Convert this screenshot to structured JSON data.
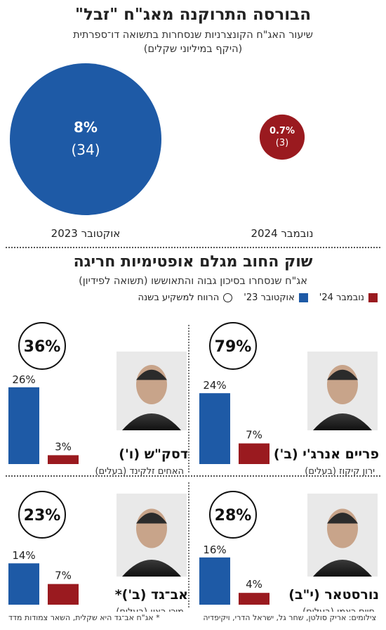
{
  "colors": {
    "blue": "#1e5aa6",
    "red": "#9a1a1f",
    "ink": "#1a1a1a"
  },
  "top": {
    "title": "הבורסה התרוקנה מאג\"ח \"זבל\"",
    "subtitle": "שיעור האג\"ח הקונצרניות שנסחרות בתשואה דו־ספרתית",
    "subtitle2": "(היקף במיליוני שקלים)"
  },
  "chart_data": [
    {
      "type": "bubble",
      "categories": [
        "אוקטובר 2023",
        "נובמבר 2024"
      ],
      "values": [
        8,
        0.7
      ],
      "value_labels": [
        "8%",
        "0.7%"
      ],
      "volume_labels": [
        "(34)",
        "(3)"
      ],
      "volumes": [
        34,
        3
      ],
      "unit": "%"
    },
    {
      "type": "bar",
      "legend": [
        "נובמבר 24'",
        "אוקטובר 23'",
        "הרווח למשקיע בשנה"
      ],
      "legend_placement": "top",
      "panels": [
        {
          "company": "פריים אנרג'י (ב')",
          "person": "ירון קיקוז (בעלים)",
          "oct23": 24,
          "nov24": 7,
          "oct23_label": "24%",
          "nov24_label": "7%",
          "gain_label": "79%"
        },
        {
          "company": "דסק\"ש (ו')",
          "person": "האחים זלקינד (בעלים)",
          "oct23": 26,
          "nov24": 3,
          "oct23_label": "26%",
          "nov24_label": "3%",
          "gain_label": "36%"
        },
        {
          "company": "נורסטאר (י\"ב)",
          "person": "חיים כצמן (בעלים)",
          "oct23": 16,
          "nov24": 4,
          "oct23_label": "16%",
          "nov24_label": "4%",
          "gain_label": "28%"
        },
        {
          "company": "אב־גד (ב')*",
          "person": "מיכי רצון (בעלים)",
          "oct23": 14,
          "nov24": 7,
          "oct23_label": "14%",
          "nov24_label": "7%",
          "gain_label": "23%"
        }
      ]
    }
  ],
  "middle": {
    "title": "שוק החוב מגלם אופטימיות חריגה",
    "subtitle": "אג\"ח שנסחרו בסיכון גבוה והתאוששו (תשואה לפידיון)"
  },
  "footer": {
    "credits": "צילומים: אריק סולטן, שחר גל, ישראל הדרי, ויקיפדיה",
    "note": "* אג\"ח אב־גד היא שקלית, השאר צמודות מדד"
  }
}
